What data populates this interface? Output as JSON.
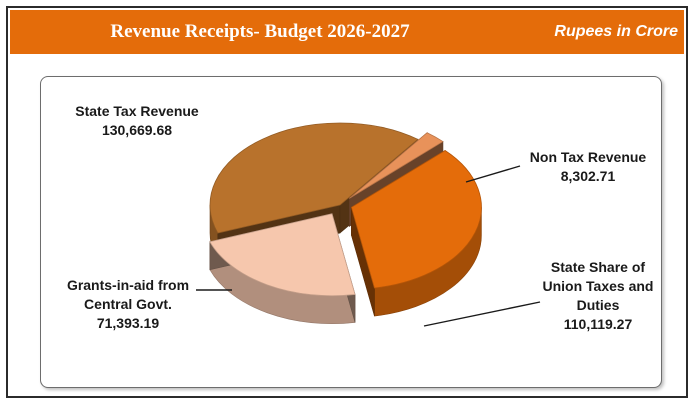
{
  "header": {
    "title": "Revenue Receipts- Budget 2026-2027",
    "units": "Rupees in Crore"
  },
  "colors": {
    "header_bg": "#e46c0a",
    "state_tax": "#b8722c",
    "non_tax": "#e8925a",
    "state_share": "#e46c0a",
    "grants": "#f6c7ad"
  },
  "chart_data": {
    "type": "pie",
    "title": "Revenue Receipts- Budget 2026-2027",
    "units": "Rupees in Crore",
    "legend": "none",
    "slices": [
      {
        "label": "State Tax Revenue",
        "value": 130669.68,
        "value_label": "130,669.68"
      },
      {
        "label": "Non Tax Revenue",
        "value": 8302.71,
        "value_label": "8,302.71"
      },
      {
        "label": "State Share of Union Taxes and Duties",
        "value": 110119.27,
        "value_label": "110,119.27"
      },
      {
        "label": "Grants-in-aid from Central Govt.",
        "value": 71393.19,
        "value_label": "71,393.19"
      }
    ]
  }
}
